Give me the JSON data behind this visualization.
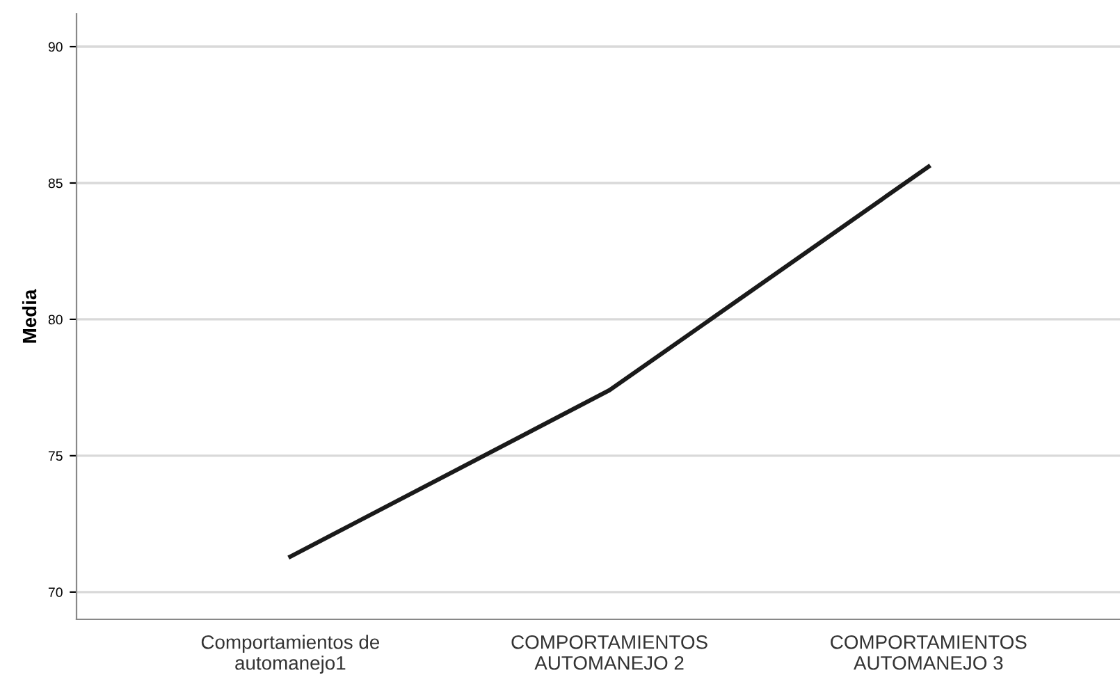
{
  "chart_data": {
    "type": "line",
    "ylabel": "Media",
    "categories": [
      "Comportamientos de\nautomanejo1",
      "COMPORTAMIENTOS\nAUTOMANEJO 2",
      "COMPORTAMIENTOS\nAUTOMANEJO 3"
    ],
    "series": [
      {
        "color": "#1a1a1a",
        "values": [
          71.3,
          77.4,
          85.6
        ]
      }
    ],
    "ylim": [
      69,
      91.2
    ],
    "yticks": [
      70,
      75,
      80,
      85,
      90
    ],
    "grid": "y",
    "marker": "none",
    "line_style": "solid"
  }
}
